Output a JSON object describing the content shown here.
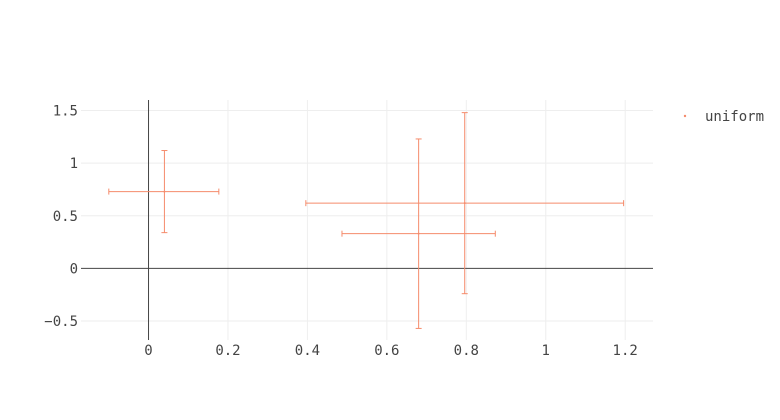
{
  "chart_data": {
    "type": "scatter",
    "title": "",
    "xlabel": "",
    "ylabel": "",
    "xlim": [
      -0.17,
      1.27
    ],
    "ylim": [
      -0.68,
      1.6
    ],
    "x_ticks": [
      0,
      0.2,
      0.4,
      0.6,
      0.8,
      1,
      1.2
    ],
    "x_tick_labels": [
      "0",
      "0.2",
      "0.4",
      "0.6",
      "0.8",
      "1",
      "1.2"
    ],
    "y_ticks": [
      -0.5,
      0,
      0.5,
      1,
      1.5
    ],
    "y_tick_labels": [
      "−0.5",
      "0",
      "0.5",
      "1",
      "1.5"
    ],
    "grid": true,
    "legend_position": "top-right",
    "series": [
      {
        "name": "uniform",
        "color": "#f58b6b",
        "points": [
          {
            "x": 0.04,
            "y": 0.73,
            "x_lo": -0.1,
            "x_hi": 0.177,
            "y_lo": 0.34,
            "y_hi": 1.12
          },
          {
            "x": 0.68,
            "y": 0.33,
            "x_lo": 0.487,
            "x_hi": 0.873,
            "y_lo": -0.57,
            "y_hi": 1.23
          },
          {
            "x": 0.796,
            "y": 0.62,
            "x_lo": 0.396,
            "x_hi": 1.196,
            "y_lo": -0.24,
            "y_hi": 1.48
          }
        ]
      }
    ]
  }
}
